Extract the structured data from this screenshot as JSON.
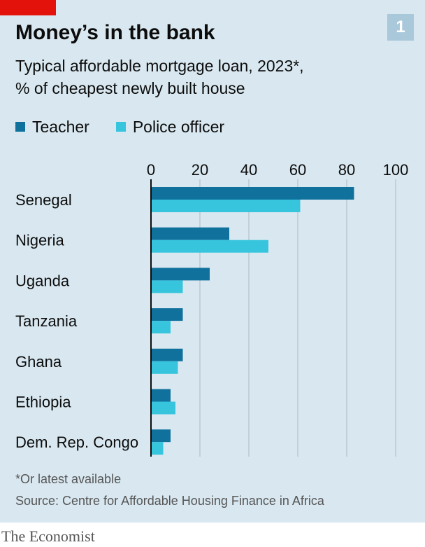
{
  "header": {
    "title": "Money’s in the bank",
    "chart_number": "1",
    "subtitle_line1": "Typical affordable mortgage loan, 2023*,",
    "subtitle_line2": "% of cheapest newly built house"
  },
  "legend": {
    "teacher": "Teacher",
    "police": "Police officer"
  },
  "colors": {
    "teacher": "#10719d",
    "police": "#36c5dd",
    "panel": "#d9e8f0",
    "grid": "#b9c8d2",
    "axis": "#0c0c0c",
    "brand_red": "#e3120b"
  },
  "chart_data": {
    "type": "bar",
    "orientation": "horizontal",
    "title": "Money’s in the bank",
    "subtitle": "Typical affordable mortgage loan, 2023*, % of cheapest newly built house",
    "categories": [
      "Senegal",
      "Nigeria",
      "Uganda",
      "Tanzania",
      "Ghana",
      "Ethiopia",
      "Dem. Rep. Congo"
    ],
    "series": [
      {
        "name": "Teacher",
        "values": [
          83,
          32,
          24,
          13,
          13,
          8,
          8
        ]
      },
      {
        "name": "Police officer",
        "values": [
          61,
          48,
          13,
          8,
          11,
          10,
          5
        ]
      }
    ],
    "xlim": [
      0,
      100
    ],
    "ticks": [
      0,
      20,
      40,
      60,
      80,
      100
    ],
    "tick_labels": [
      "0",
      "20",
      "40",
      "60",
      "80",
      "100"
    ],
    "grid": true,
    "legend_position": "top-left"
  },
  "footer": {
    "footnote": "*Or latest available",
    "source": "Source: Centre for Affordable Housing Finance in Africa",
    "brand": "The Economist"
  }
}
